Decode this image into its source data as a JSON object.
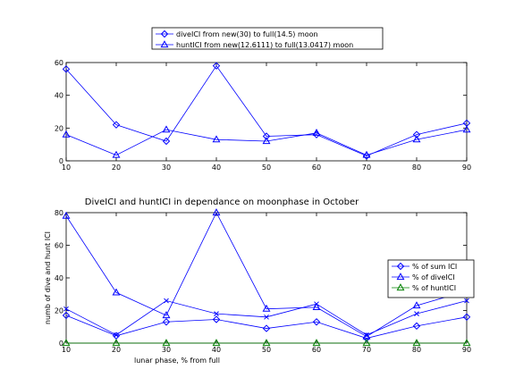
{
  "chart_data": [
    {
      "type": "line",
      "title": "",
      "xlabel": "",
      "ylabel": "",
      "x": [
        10,
        20,
        30,
        40,
        50,
        60,
        70,
        80,
        90
      ],
      "xlim": [
        10,
        90
      ],
      "ylim": [
        0,
        60
      ],
      "xticks": [
        10,
        20,
        30,
        40,
        50,
        60,
        70,
        80,
        90
      ],
      "yticks": [
        0,
        20,
        40,
        60
      ],
      "legend_position": "above",
      "series": [
        {
          "name": "diveICI from new(30) to full(14.5) moon",
          "marker": "diamond",
          "color": "#0000ff",
          "values": [
            56,
            22,
            12,
            58,
            15,
            16,
            3,
            16,
            23
          ]
        },
        {
          "name": "huntICI from new(12.6111) to full(13.0417) moon",
          "marker": "triangle",
          "color": "#0000ff",
          "values": [
            16,
            3.5,
            19,
            13,
            12,
            17,
            3.5,
            13,
            19
          ]
        }
      ]
    },
    {
      "type": "line",
      "title": "DiveICI and huntICI in dependance on moonphase in October",
      "xlabel": "lunar phase, % from full",
      "ylabel": "numb of dive and hunt ICI",
      "x": [
        10,
        20,
        30,
        40,
        50,
        60,
        70,
        80,
        90
      ],
      "xlim": [
        10,
        90
      ],
      "ylim": [
        0,
        80
      ],
      "xticks": [
        10,
        20,
        30,
        40,
        50,
        60,
        70,
        80,
        90
      ],
      "yticks": [
        0,
        20,
        40,
        60,
        80
      ],
      "legend_position": "right",
      "series": [
        {
          "name": "% of sum ICI",
          "marker": "diamond",
          "color": "#0000ff",
          "values": [
            17,
            4.5,
            13,
            14.5,
            9,
            13,
            3,
            10.5,
            16
          ]
        },
        {
          "name": "% of diveICI",
          "marker": "triangle",
          "color": "#0000ff",
          "values": [
            78,
            31,
            17,
            80,
            21,
            22,
            4,
            23,
            32
          ]
        },
        {
          "name": "% of huntICI",
          "marker": "triangle",
          "color": "#008000",
          "values": [
            0,
            0,
            0,
            0,
            0,
            0,
            0,
            0,
            0
          ]
        },
        {
          "name": "",
          "marker": "x",
          "color": "#0000ff",
          "values": [
            21,
            5,
            26,
            18,
            16,
            24,
            5,
            18,
            26
          ]
        }
      ]
    }
  ]
}
